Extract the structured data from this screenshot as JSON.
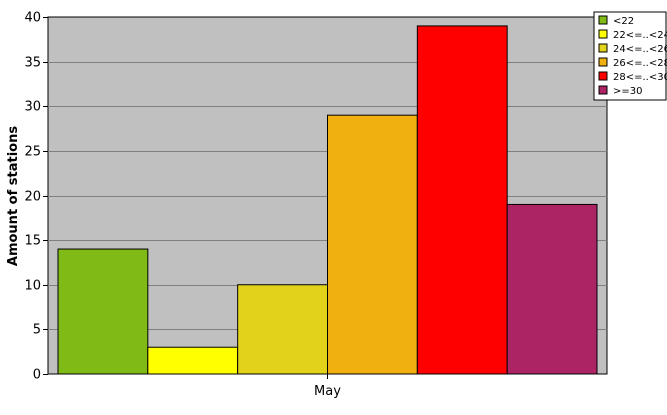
{
  "chart_data": {
    "type": "bar",
    "title": "",
    "xlabel": "",
    "ylabel": "Amount of stations",
    "categories": [
      "May"
    ],
    "ylim": [
      0,
      40
    ],
    "yticks": [
      0,
      5,
      10,
      15,
      20,
      25,
      30,
      35,
      40
    ],
    "grid": true,
    "legend_position": "top-right",
    "plot_background": "#c0c0c0",
    "series": [
      {
        "name": "<22",
        "values": [
          14
        ],
        "color": "#7fba17"
      },
      {
        "name": "22<=..<24",
        "values": [
          3
        ],
        "color": "#ffff00"
      },
      {
        "name": "24<=..<26",
        "values": [
          10
        ],
        "color": "#e2d31a"
      },
      {
        "name": "26<=..<28",
        "values": [
          29
        ],
        "color": "#efb010"
      },
      {
        "name": "28<=..<30",
        "values": [
          39
        ],
        "color": "#ff0000"
      },
      {
        "name": ">=30",
        "values": [
          19
        ],
        "color": "#ac2464"
      }
    ]
  }
}
